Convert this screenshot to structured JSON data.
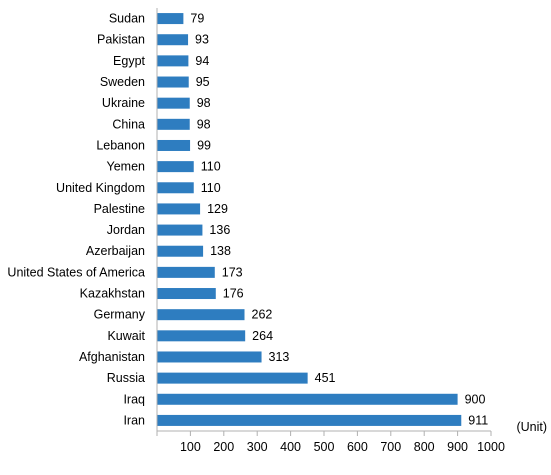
{
  "chart_data": {
    "type": "bar",
    "orientation": "horizontal",
    "categories": [
      "Sudan",
      "Pakistan",
      "Egypt",
      "Sweden",
      "Ukraine",
      "China",
      "Lebanon",
      "Yemen",
      "United Kingdom",
      "Palestine",
      "Jordan",
      "Azerbaijan",
      "United States of America",
      "Kazakhstan",
      "Germany",
      "Kuwait",
      "Afghanistan",
      "Russia",
      "Iraq",
      "Iran"
    ],
    "values": [
      79,
      93,
      94,
      95,
      98,
      98,
      99,
      110,
      110,
      129,
      136,
      138,
      173,
      176,
      262,
      264,
      313,
      451,
      900,
      911
    ],
    "xlim": [
      0,
      1000
    ],
    "xticks": [
      100,
      200,
      300,
      400,
      500,
      600,
      700,
      800,
      900,
      1000
    ],
    "unit_label": "(Unit)",
    "bar_color": "#2e7dc0",
    "grid": false,
    "data_labels": true
  }
}
